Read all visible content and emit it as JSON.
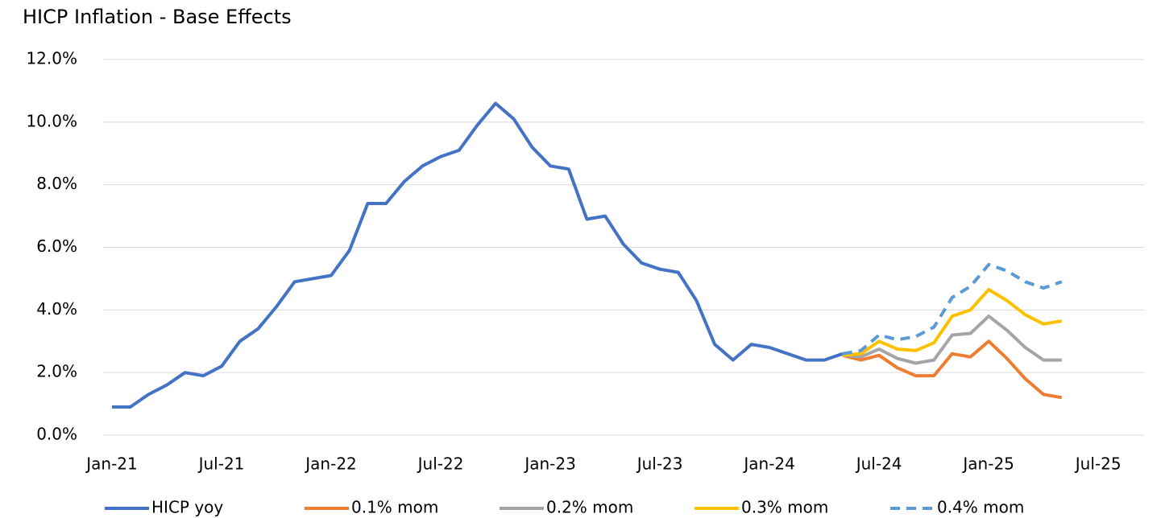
{
  "chart_data": {
    "type": "line",
    "title": "HICP Inflation - Base Effects",
    "categories": [
      "Jan-21",
      null,
      null,
      null,
      null,
      null,
      "Jul-21",
      null,
      null,
      null,
      null,
      null,
      "Jan-22",
      null,
      null,
      null,
      null,
      null,
      "Jul-22",
      null,
      null,
      null,
      null,
      null,
      "Jan-23",
      null,
      null,
      null,
      null,
      null,
      "Jul-23",
      null,
      null,
      null,
      null,
      null,
      "Jan-24",
      null,
      null,
      null,
      null,
      null,
      "Jul-24",
      null,
      null,
      null,
      null,
      null,
      "Jan-25",
      null,
      null,
      null,
      null,
      null,
      "Jul-25"
    ],
    "series": [
      {
        "name": "HICP yoy",
        "color": "#4472c4",
        "dashed": false,
        "values": [
          0.9,
          0.9,
          1.3,
          1.6,
          2.0,
          1.9,
          2.2,
          3.0,
          3.4,
          4.1,
          4.9,
          5.0,
          5.1,
          5.9,
          7.4,
          7.4,
          8.1,
          8.6,
          8.9,
          9.1,
          9.9,
          10.6,
          10.1,
          9.2,
          8.6,
          8.5,
          6.9,
          7.0,
          6.1,
          5.5,
          5.3,
          5.2,
          4.3,
          2.9,
          2.4,
          2.9,
          2.8,
          2.6,
          2.4,
          2.4,
          2.6,
          null,
          null,
          null,
          null,
          null,
          null,
          null,
          null,
          null,
          null,
          null,
          null,
          null,
          null
        ]
      },
      {
        "name": "0.1% mom",
        "color": "#ed7d31",
        "dashed": false,
        "values": [
          null,
          null,
          null,
          null,
          null,
          null,
          null,
          null,
          null,
          null,
          null,
          null,
          null,
          null,
          null,
          null,
          null,
          null,
          null,
          null,
          null,
          null,
          null,
          null,
          null,
          null,
          null,
          null,
          null,
          null,
          null,
          null,
          null,
          null,
          null,
          null,
          null,
          null,
          null,
          null,
          2.55,
          2.4,
          2.55,
          2.15,
          1.9,
          1.9,
          2.6,
          2.5,
          3.0,
          2.45,
          1.8,
          1.3,
          1.2,
          null,
          null
        ]
      },
      {
        "name": "0.2% mom",
        "color": "#a5a5a5",
        "dashed": false,
        "values": [
          null,
          null,
          null,
          null,
          null,
          null,
          null,
          null,
          null,
          null,
          null,
          null,
          null,
          null,
          null,
          null,
          null,
          null,
          null,
          null,
          null,
          null,
          null,
          null,
          null,
          null,
          null,
          null,
          null,
          null,
          null,
          null,
          null,
          null,
          null,
          null,
          null,
          null,
          null,
          null,
          2.55,
          2.5,
          2.75,
          2.45,
          2.3,
          2.4,
          3.2,
          3.25,
          3.8,
          3.35,
          2.8,
          2.4,
          2.4,
          null,
          null
        ]
      },
      {
        "name": "0.3% mom",
        "color": "#ffc000",
        "dashed": false,
        "values": [
          null,
          null,
          null,
          null,
          null,
          null,
          null,
          null,
          null,
          null,
          null,
          null,
          null,
          null,
          null,
          null,
          null,
          null,
          null,
          null,
          null,
          null,
          null,
          null,
          null,
          null,
          null,
          null,
          null,
          null,
          null,
          null,
          null,
          null,
          null,
          null,
          null,
          null,
          null,
          null,
          2.55,
          2.6,
          3.0,
          2.75,
          2.7,
          2.95,
          3.8,
          4.0,
          4.65,
          4.3,
          3.85,
          3.55,
          3.65,
          null,
          null
        ]
      },
      {
        "name": "0.4% mom",
        "color": "#5b9bd5",
        "dashed": true,
        "values": [
          null,
          null,
          null,
          null,
          null,
          null,
          null,
          null,
          null,
          null,
          null,
          null,
          null,
          null,
          null,
          null,
          null,
          null,
          null,
          null,
          null,
          null,
          null,
          null,
          null,
          null,
          null,
          null,
          null,
          null,
          null,
          null,
          null,
          null,
          null,
          null,
          null,
          null,
          null,
          null,
          2.6,
          2.7,
          3.2,
          3.05,
          3.15,
          3.45,
          4.4,
          4.75,
          5.45,
          5.25,
          4.9,
          4.7,
          4.9,
          null,
          null
        ]
      }
    ],
    "ylim": [
      0,
      12
    ],
    "yticks": [
      {
        "value": 0,
        "label": "0.0%"
      },
      {
        "value": 2,
        "label": "2.0%"
      },
      {
        "value": 4,
        "label": "4.0%"
      },
      {
        "value": 6,
        "label": "6.0%"
      },
      {
        "value": 8,
        "label": "8.0%"
      },
      {
        "value": 10,
        "label": "10.0%"
      },
      {
        "value": 12,
        "label": "12.0%"
      }
    ],
    "grid": true,
    "legend": "bottom"
  }
}
